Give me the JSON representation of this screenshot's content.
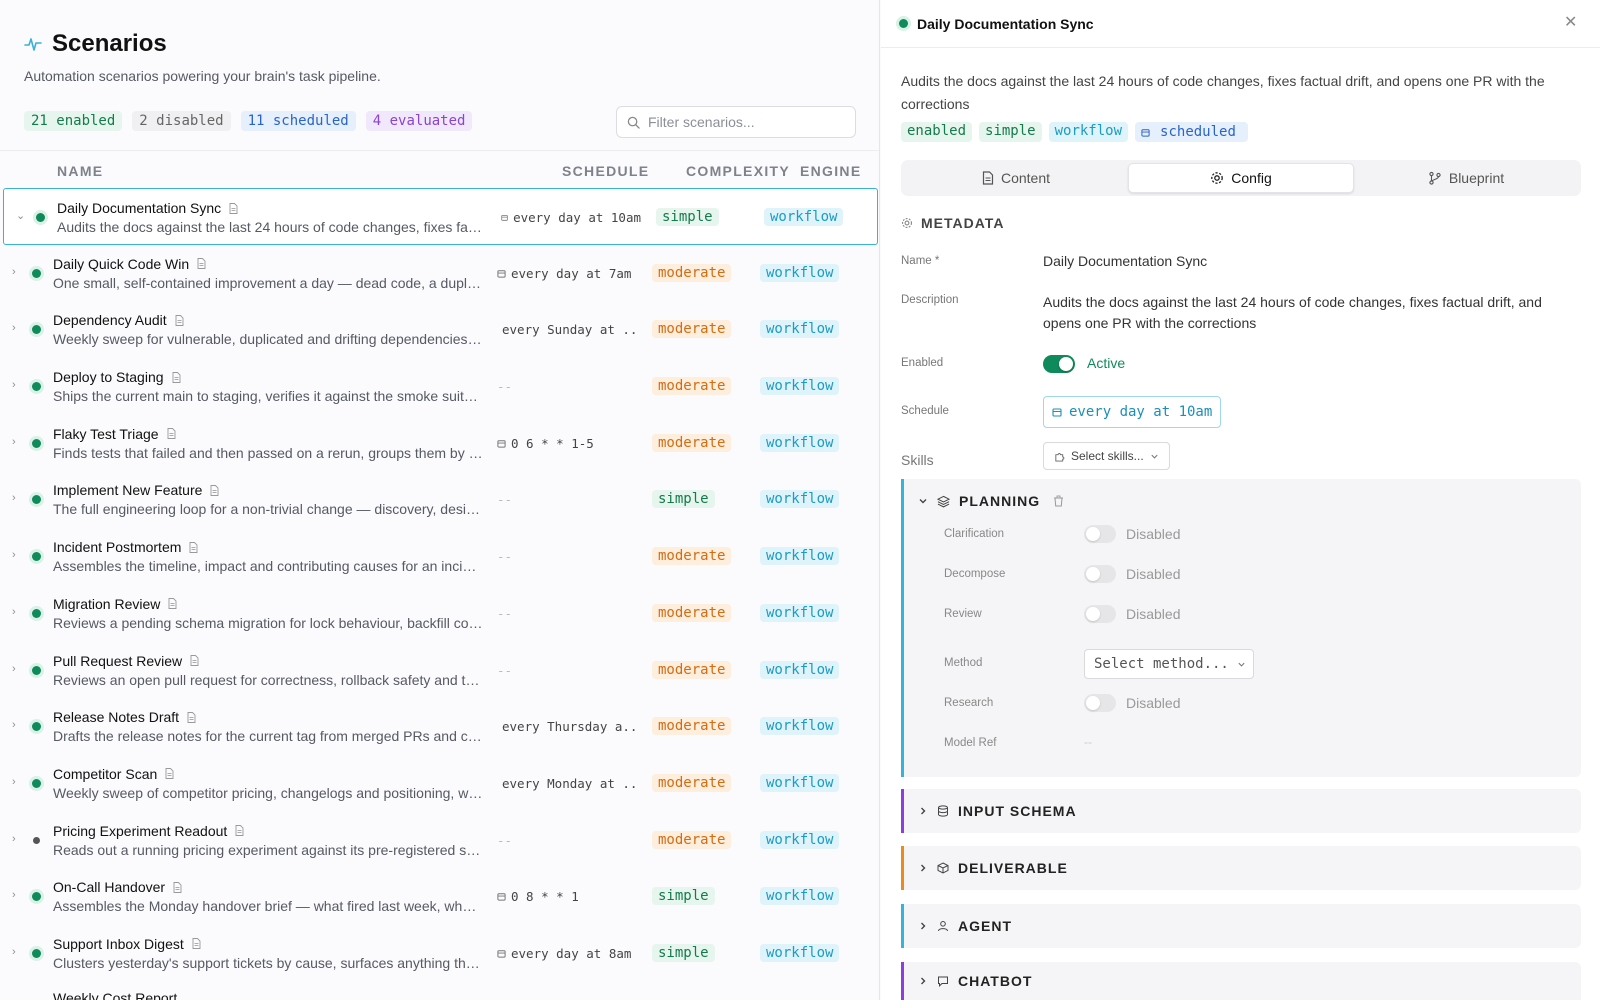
{
  "header": {
    "title": "Scenarios",
    "subtitle": "Automation scenarios powering your brain's task pipeline."
  },
  "stats": {
    "enabled": "21 enabled",
    "disabled": "2 disabled",
    "scheduled": "11 scheduled",
    "evaluated": "4 evaluated"
  },
  "filter": {
    "placeholder": "Filter scenarios..."
  },
  "columns": {
    "name": "NAME",
    "schedule": "SCHEDULE",
    "complexity": "COMPLEXITY",
    "engine": "ENGINE"
  },
  "rows": [
    {
      "name": "Daily Documentation Sync",
      "desc": "Audits the docs against the last 24 hours of code changes, fixes factual drift, and opens one PR with the corrections",
      "schedule": "every day at 10am",
      "complexity": "simple",
      "engine": "workflow",
      "enabled": true,
      "selected": true
    },
    {
      "name": "Daily Quick Code Win",
      "desc": "One small, self-contained improvement a day — dead code, a duplicated helper, a missing test",
      "schedule": "every day at 7am",
      "complexity": "moderate",
      "engine": "workflow",
      "enabled": true
    },
    {
      "name": "Dependency Audit",
      "desc": "Weekly sweep for vulnerable, duplicated and drifting dependencies across the repo",
      "schedule": "every Sunday at ...",
      "complexity": "moderate",
      "engine": "workflow",
      "enabled": true
    },
    {
      "name": "Deploy to Staging",
      "desc": "Ships the current main to staging, verifies it against the smoke suite and reports",
      "schedule": "--",
      "complexity": "moderate",
      "engine": "workflow",
      "enabled": true
    },
    {
      "name": "Flaky Test Triage",
      "desc": "Finds tests that failed and then passed on a rerun, groups them by root cause",
      "schedule": "0 6 * * 1-5",
      "complexity": "moderate",
      "engine": "workflow",
      "enabled": true
    },
    {
      "name": "Implement New Feature",
      "desc": "The full engineering loop for a non-trivial change — discovery, design, build, test",
      "schedule": "--",
      "complexity": "simple",
      "engine": "workflow",
      "enabled": true
    },
    {
      "name": "Incident Postmortem",
      "desc": "Assembles the timeline, impact and contributing causes for an incident into a draft",
      "schedule": "--",
      "complexity": "moderate",
      "engine": "workflow",
      "enabled": true
    },
    {
      "name": "Migration Review",
      "desc": "Reviews a pending schema migration for lock behaviour, backfill cost and rollback",
      "schedule": "--",
      "complexity": "moderate",
      "engine": "workflow",
      "enabled": true
    },
    {
      "name": "Pull Request Review",
      "desc": "Reviews an open pull request for correctness, rollback safety and test coverage",
      "schedule": "--",
      "complexity": "moderate",
      "engine": "workflow",
      "enabled": true
    },
    {
      "name": "Release Notes Draft",
      "desc": "Drafts the release notes for the current tag from merged PRs and changelog entries",
      "schedule": "every Thursday a...",
      "complexity": "moderate",
      "engine": "workflow",
      "enabled": true
    },
    {
      "name": "Competitor Scan",
      "desc": "Weekly sweep of competitor pricing, changelogs and positioning, with a short summary",
      "schedule": "every Monday at ...",
      "complexity": "moderate",
      "engine": "workflow",
      "enabled": true
    },
    {
      "name": "Pricing Experiment Readout",
      "desc": "Reads out a running pricing experiment against its pre-registered success metrics",
      "schedule": "--",
      "complexity": "moderate",
      "engine": "workflow",
      "enabled": false
    },
    {
      "name": "On-Call Handover",
      "desc": "Assembles the Monday handover brief — what fired last week, what is still open",
      "schedule": "0 8 * * 1",
      "complexity": "simple",
      "engine": "workflow",
      "enabled": true
    },
    {
      "name": "Support Inbox Digest",
      "desc": "Clusters yesterday's support tickets by cause, surfaces anything that needs a human",
      "schedule": "every day at 8am",
      "complexity": "simple",
      "engine": "workflow",
      "enabled": true
    }
  ],
  "partial_row": "Weekly Cost Report",
  "detail": {
    "title": "Daily Documentation Sync",
    "description": "Audits the docs against the last 24 hours of code changes, fixes factual drift, and opens one PR with the corrections",
    "tags": {
      "enabled": "enabled",
      "complexity": "simple",
      "engine": "workflow",
      "scheduled": "scheduled"
    },
    "tabs": {
      "content": "Content",
      "config": "Config",
      "blueprint": "Blueprint"
    },
    "metadata_heading": "METADATA",
    "fields": {
      "name_label": "Name *",
      "name_value": "Daily Documentation Sync",
      "desc_label": "Description",
      "desc_value": "Audits the docs against the last 24 hours of code changes, fixes factual drift, and opens one PR with the corrections",
      "enabled_label": "Enabled",
      "enabled_value": "Active",
      "schedule_label": "Schedule",
      "schedule_value": "every day at 10am",
      "skills_label": "Skills",
      "skills_placeholder": "Select skills..."
    },
    "planning": {
      "heading": "PLANNING",
      "clarification_label": "Clarification",
      "clarification_value": "Disabled",
      "decompose_label": "Decompose",
      "decompose_value": "Disabled",
      "review_label": "Review",
      "review_value": "Disabled",
      "method_label": "Method",
      "method_placeholder": "Select method...",
      "research_label": "Research",
      "research_value": "Disabled",
      "model_ref_label": "Model Ref",
      "model_ref_value": "--"
    },
    "sections": {
      "input_schema": "INPUT SCHEMA",
      "deliverable": "DELIVERABLE",
      "agent": "AGENT",
      "chatbot": "CHATBOT"
    },
    "colors": {
      "accent": "#38b2d6",
      "enabled": "#0f8a5a",
      "input_schema": "#8b3fe0",
      "deliverable": "#ea8a1f",
      "agent": "#38b2d6",
      "chatbot": "#8b3fe0"
    }
  }
}
